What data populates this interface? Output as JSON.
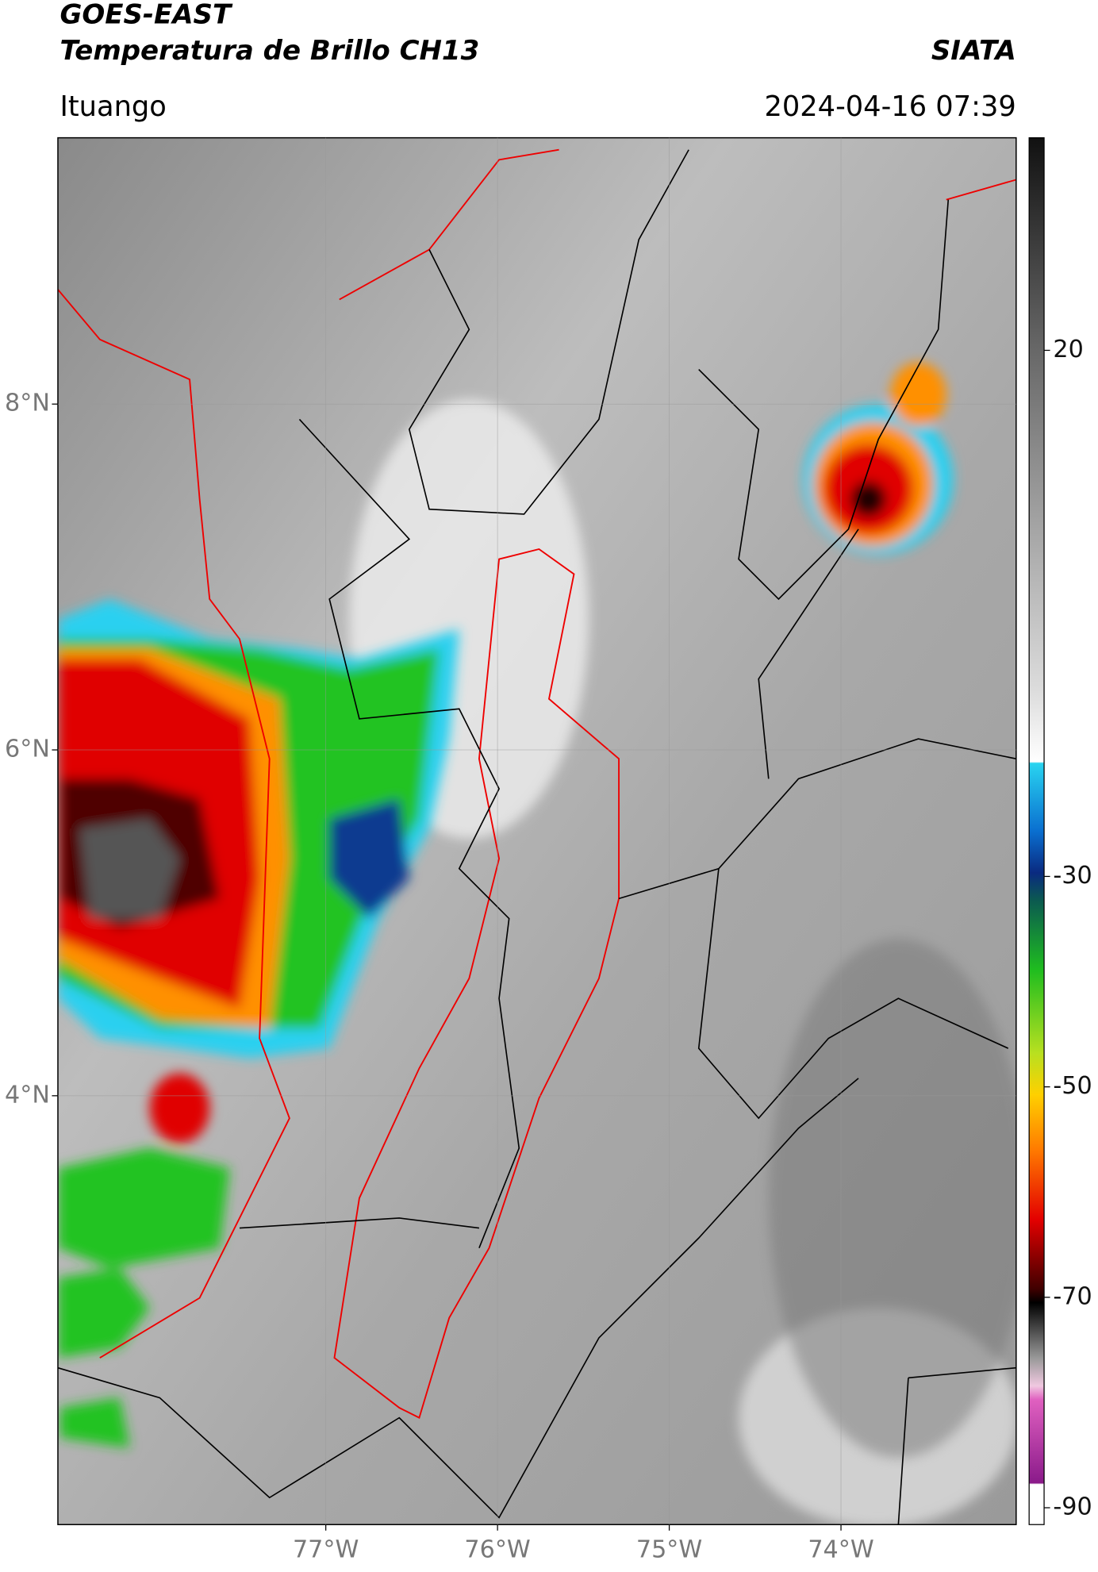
{
  "header": {
    "title": "GOES-EAST",
    "subtitle": "Temperatura de Brillo CH13",
    "agency": "SIATA",
    "location": "Ituango",
    "datetime": "2024-04-16 07:39"
  },
  "map": {
    "lon_range": [
      -78.56,
      -72.98
    ],
    "lat_range": [
      1.52,
      9.54
    ],
    "lat_ticks": [
      {
        "value": 8,
        "label": "8°N"
      },
      {
        "value": 6,
        "label": "6°N"
      },
      {
        "value": 4,
        "label": "4°N"
      }
    ],
    "lon_ticks": [
      {
        "value": -77,
        "label": "77°W"
      },
      {
        "value": -76,
        "label": "76°W"
      },
      {
        "value": -75,
        "label": "75°W"
      },
      {
        "value": -74,
        "label": "74°W"
      }
    ]
  },
  "colorbar": {
    "range": [
      -91.6,
      40.2
    ],
    "ticks": [
      20,
      -30,
      -50,
      -70,
      -90
    ]
  }
}
